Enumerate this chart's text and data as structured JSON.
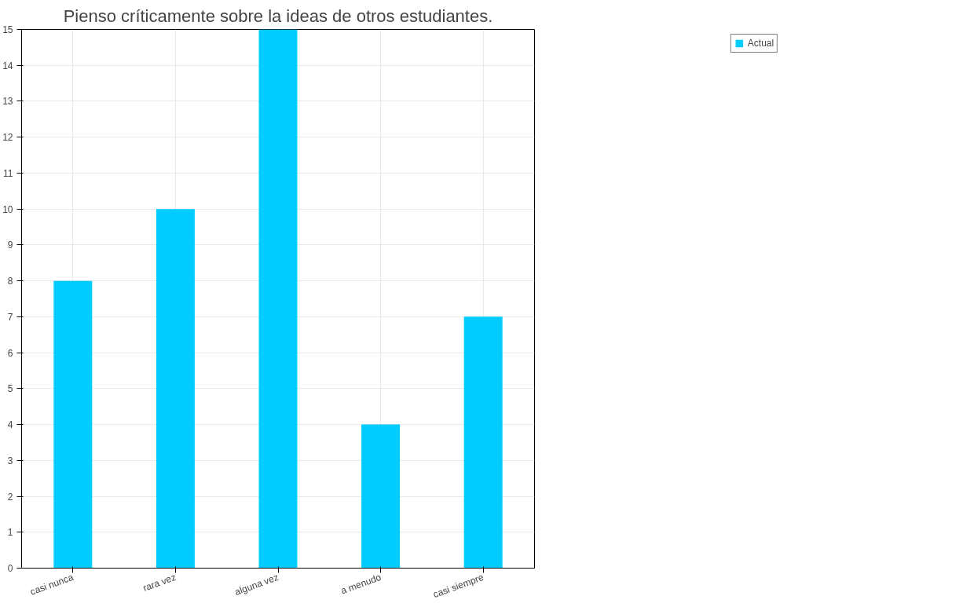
{
  "chart_data": {
    "type": "bar",
    "title": "Pienso críticamente sobre la ideas de otros estudiantes.",
    "categories": [
      "casi nunca",
      "rara vez",
      "alguna vez",
      "a menudo",
      "casi siempre"
    ],
    "series": [
      {
        "name": "Actual",
        "color": "#00ccff",
        "values": [
          8,
          10,
          15,
          4,
          7
        ]
      }
    ],
    "ylim": [
      0,
      15
    ],
    "yticks": [
      0,
      1,
      2,
      3,
      4,
      5,
      6,
      7,
      8,
      9,
      10,
      11,
      12,
      13,
      14,
      15
    ],
    "grid": true,
    "legend": "top right"
  }
}
